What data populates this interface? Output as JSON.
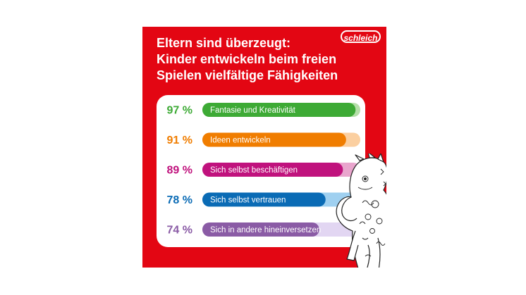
{
  "header": {
    "title_lines": [
      "Eltern sind überzeugt:",
      "Kinder entwickeln beim freien",
      "Spielen vielfältige Fähigkeiten"
    ],
    "logo_text": "schleich"
  },
  "colors": {
    "background": "#e30613",
    "panel": "#ffffff",
    "text_on_red": "#ffffff"
  },
  "chart_data": {
    "type": "bar",
    "orientation": "horizontal",
    "categories": [
      "Fantasie und Kreativität",
      "Ideen entwickeln",
      "Sich selbst beschäftigen",
      "Sich selbst vertrauen",
      "Sich in andere hineinversetzen"
    ],
    "values": [
      97,
      91,
      89,
      78,
      74
    ],
    "value_labels": [
      "97 %",
      "91 %",
      "89 %",
      "78 %",
      "74 %"
    ],
    "xlim": [
      0,
      100
    ],
    "colors": [
      "#3daa35",
      "#f07d00",
      "#c0127d",
      "#0a6bb5",
      "#8a5ba5"
    ],
    "track_colors": [
      "#b5dfa9",
      "#fbcfa0",
      "#e9a5cd",
      "#9fd0f0",
      "#e2d6f2"
    ],
    "grid": false,
    "legend": "none"
  }
}
